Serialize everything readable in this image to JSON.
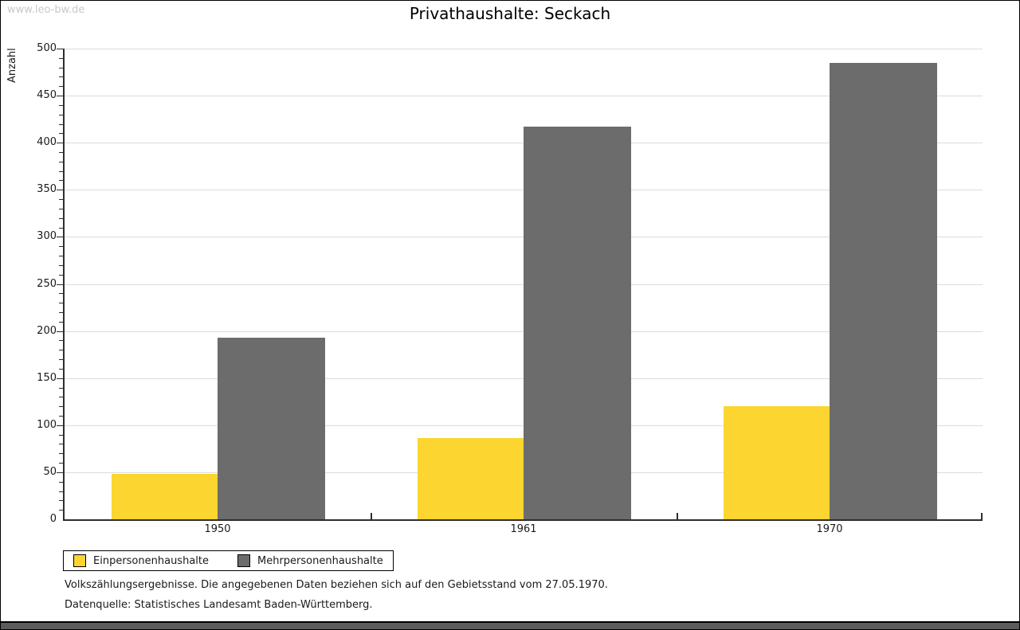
{
  "watermark": "www.leo-bw.de",
  "title": "Privathaushalte: Seckach",
  "chart_data": {
    "type": "bar",
    "title": "Privathaushalte: Seckach",
    "ylabel": "Anzahl",
    "xlabel": "",
    "categories": [
      "1950",
      "1961",
      "1970"
    ],
    "series": [
      {
        "name": "Einpersonenhaushalte",
        "color": "#FCD530",
        "values": [
          48,
          86,
          120
        ]
      },
      {
        "name": "Mehrpersonenhaushalte",
        "color": "#6C6C6C",
        "values": [
          193,
          417,
          485
        ]
      }
    ],
    "ylim": [
      0,
      500
    ],
    "ytick_step": 50,
    "minor_tick_step": 10,
    "grid": true,
    "grid_color": "#dcdcdc",
    "legend_position": "bottom-left"
  },
  "footnotes": {
    "line1": "Volkszählungsergebnisse. Die angegebenen Daten beziehen sich auf den Gebietsstand vom 27.05.1970.",
    "line2": "Datenquelle: Statistisches Landesamt Baden-Württemberg."
  },
  "colors": {
    "bar_yellow": "#FCD530",
    "bar_gray": "#6C6C6C",
    "axis": "#2e2e2e",
    "gridline": "#dcdcdc",
    "watermark": "#c9c9c9",
    "bottom_bar": "#5c5c5c"
  }
}
